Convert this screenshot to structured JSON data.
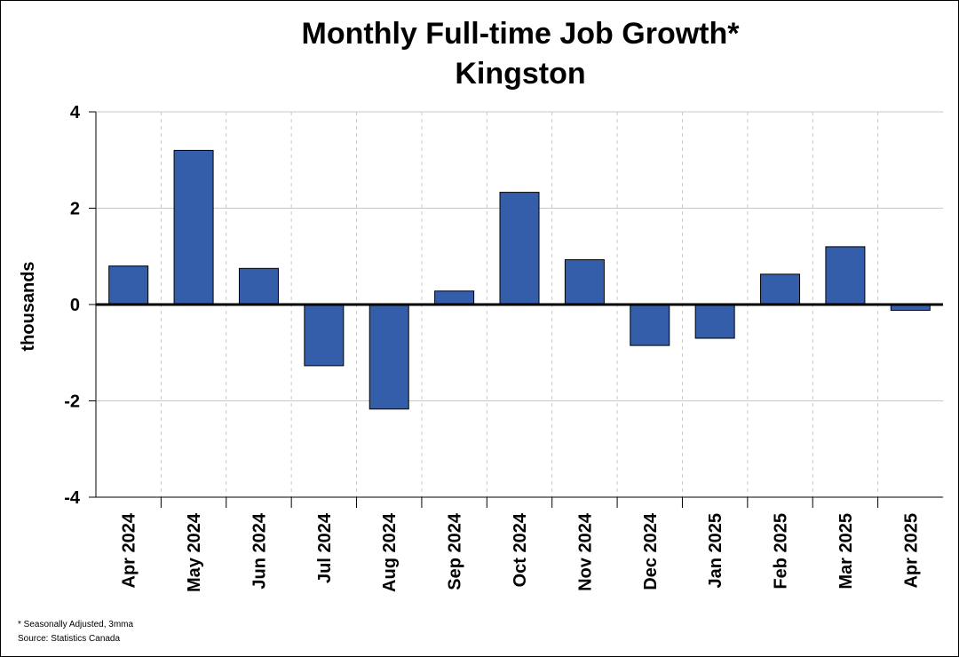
{
  "chart_data": {
    "type": "bar",
    "title": "Monthly Full-time Job Growth*",
    "subtitle": "Kingston",
    "ylabel": "thousands",
    "xlabel": "",
    "categories": [
      "Apr 2024",
      "May 2024",
      "Jun 2024",
      "Jul 2024",
      "Aug 2024",
      "Sep 2024",
      "Oct 2024",
      "Nov 2024",
      "Dec 2024",
      "Jan 2025",
      "Feb 2025",
      "Mar 2025",
      "Apr 2025"
    ],
    "values": [
      0.8,
      3.2,
      0.75,
      -1.27,
      -2.17,
      0.28,
      2.33,
      0.93,
      -0.85,
      -0.7,
      0.63,
      1.2,
      -0.12
    ],
    "ylim": [
      -4,
      4
    ],
    "yticks": [
      4,
      2,
      0,
      -2,
      -4
    ],
    "grid": true,
    "bar_color": "#345EAA",
    "legend": "none"
  },
  "footnotes": {
    "note": "* Seasonally Adjusted, 3mma",
    "source": "Source: Statistics Canada"
  }
}
